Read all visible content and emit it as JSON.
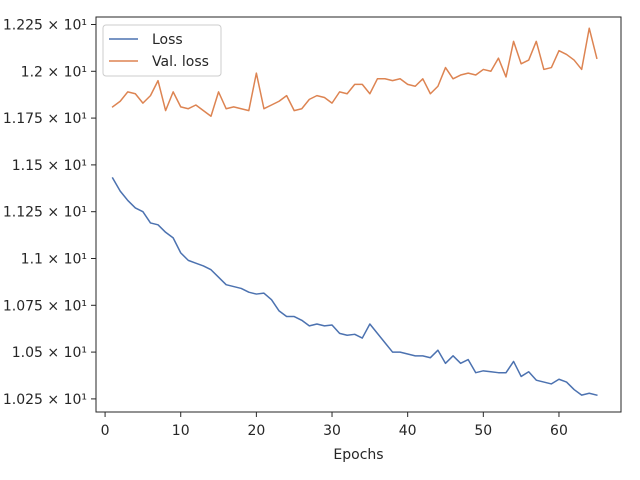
{
  "chart_data": {
    "type": "line",
    "title": "",
    "xlabel": "Epochs",
    "ylabel": "",
    "xlim": [
      -1.2,
      68.2
    ],
    "ylim": [
      10.18,
      12.29
    ],
    "grid": false,
    "legend_position": "top-left",
    "x_ticks": [
      0,
      10,
      20,
      30,
      40,
      50,
      60
    ],
    "x_tick_labels": [
      "0",
      "10",
      "20",
      "30",
      "40",
      "50",
      "60"
    ],
    "y_ticks": [
      10.25,
      10.5,
      10.75,
      11.0,
      11.25,
      11.5,
      11.75,
      12.0,
      12.25
    ],
    "y_tick_labels": [
      "1.025 × 10¹",
      "1.05 × 10¹",
      "1.075 × 10¹",
      "1.1 × 10¹",
      "1.125 × 10¹",
      "1.15 × 10¹",
      "1.175 × 10¹",
      "1.2 × 10¹",
      "1.225 × 10¹"
    ],
    "x": [
      1,
      2,
      3,
      4,
      5,
      6,
      7,
      8,
      9,
      10,
      11,
      12,
      13,
      14,
      15,
      16,
      17,
      18,
      19,
      20,
      21,
      22,
      23,
      24,
      25,
      26,
      27,
      28,
      29,
      30,
      31,
      32,
      33,
      34,
      35,
      36,
      37,
      38,
      39,
      40,
      41,
      42,
      43,
      44,
      45,
      46,
      47,
      48,
      49,
      50,
      51,
      52,
      53,
      54,
      55,
      56,
      57,
      58,
      59,
      60,
      61,
      62,
      63,
      64,
      65
    ],
    "series": [
      {
        "name": "Loss",
        "color": "#4c72b0",
        "values": [
          11.43,
          11.36,
          11.31,
          11.27,
          11.25,
          11.19,
          11.18,
          11.14,
          11.11,
          11.03,
          10.99,
          10.975,
          10.96,
          10.94,
          10.9,
          10.86,
          10.85,
          10.84,
          10.82,
          10.81,
          10.815,
          10.78,
          10.72,
          10.69,
          10.69,
          10.67,
          10.64,
          10.65,
          10.64,
          10.645,
          10.6,
          10.59,
          10.595,
          10.575,
          10.65,
          10.6,
          10.55,
          10.5,
          10.5,
          10.49,
          10.48,
          10.48,
          10.47,
          10.51,
          10.44,
          10.48,
          10.44,
          10.46,
          10.39,
          10.4,
          10.395,
          10.39,
          10.39,
          10.45,
          10.37,
          10.395,
          10.35,
          10.34,
          10.33,
          10.355,
          10.34,
          10.3,
          10.27,
          10.28,
          10.27
        ]
      },
      {
        "name": "Val. loss",
        "color": "#dd8452",
        "values": [
          11.81,
          11.84,
          11.89,
          11.88,
          11.83,
          11.87,
          11.95,
          11.79,
          11.89,
          11.81,
          11.8,
          11.82,
          11.79,
          11.76,
          11.89,
          11.8,
          11.81,
          11.8,
          11.79,
          11.99,
          11.8,
          11.82,
          11.84,
          11.87,
          11.79,
          11.8,
          11.85,
          11.87,
          11.86,
          11.83,
          11.89,
          11.88,
          11.93,
          11.93,
          11.88,
          11.96,
          11.96,
          11.95,
          11.96,
          11.93,
          11.92,
          11.96,
          11.88,
          11.92,
          12.02,
          11.96,
          11.98,
          11.99,
          11.98,
          12.01,
          12.0,
          12.07,
          11.97,
          12.16,
          12.04,
          12.06,
          12.16,
          12.01,
          12.02,
          12.11,
          12.09,
          12.06,
          12.01,
          12.23,
          12.07
        ]
      }
    ]
  }
}
